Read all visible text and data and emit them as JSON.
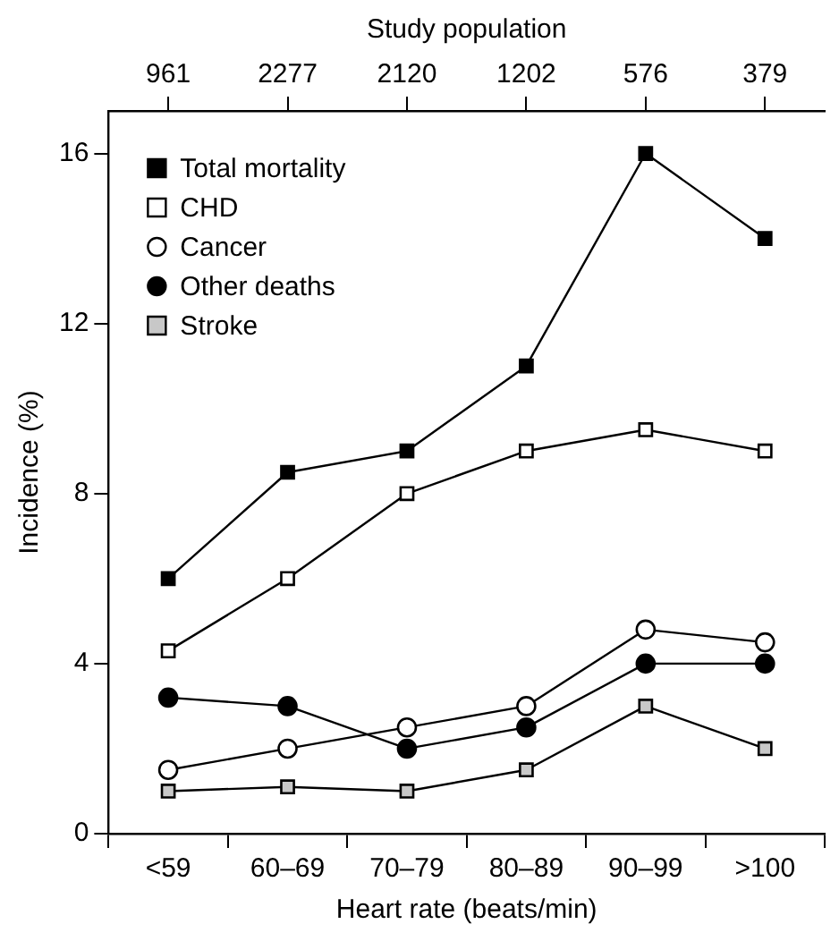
{
  "chart_data": {
    "type": "line",
    "xlabel": "Heart rate (beats/min)",
    "ylabel": "Incidence (%)",
    "x2label": "Study population",
    "categories": [
      "<59",
      "60–69",
      "70–79",
      "80–89",
      "90–99",
      ">100"
    ],
    "annotations": [
      {
        "text": "961",
        "x": "<59"
      },
      {
        "text": "2277",
        "x": "60–69"
      },
      {
        "text": "2120",
        "x": "70–79"
      },
      {
        "text": "1202",
        "x": "80–89"
      },
      {
        "text": "576",
        "x": "90–99"
      },
      {
        "text": "379",
        "x": ">100"
      }
    ],
    "series": [
      {
        "name": "Total mortality",
        "color": "#000000",
        "marker": "square",
        "values": [
          6.0,
          8.5,
          9.0,
          11.0,
          16.0,
          14.0
        ]
      },
      {
        "name": "CHD",
        "color": "#ffffff",
        "marker": "square",
        "values": [
          4.3,
          6.0,
          8.0,
          9.0,
          9.5,
          9.0
        ]
      },
      {
        "name": "Cancer",
        "color": "#ffffff",
        "marker": "circle",
        "values": [
          1.5,
          2.0,
          2.5,
          3.0,
          4.8,
          4.5
        ]
      },
      {
        "name": "Other deaths",
        "color": "#000000",
        "marker": "circle",
        "values": [
          3.2,
          3.0,
          2.0,
          2.5,
          4.0,
          4.0
        ]
      },
      {
        "name": "Stroke",
        "color": "#c8c8c8",
        "marker": "square",
        "values": [
          1.0,
          1.1,
          1.0,
          1.5,
          3.0,
          2.0
        ]
      }
    ],
    "ylim": [
      0,
      17
    ],
    "yticks": [
      0,
      4,
      8,
      12,
      16
    ],
    "grid": false,
    "legend": "top left",
    "line_style": "solid"
  }
}
